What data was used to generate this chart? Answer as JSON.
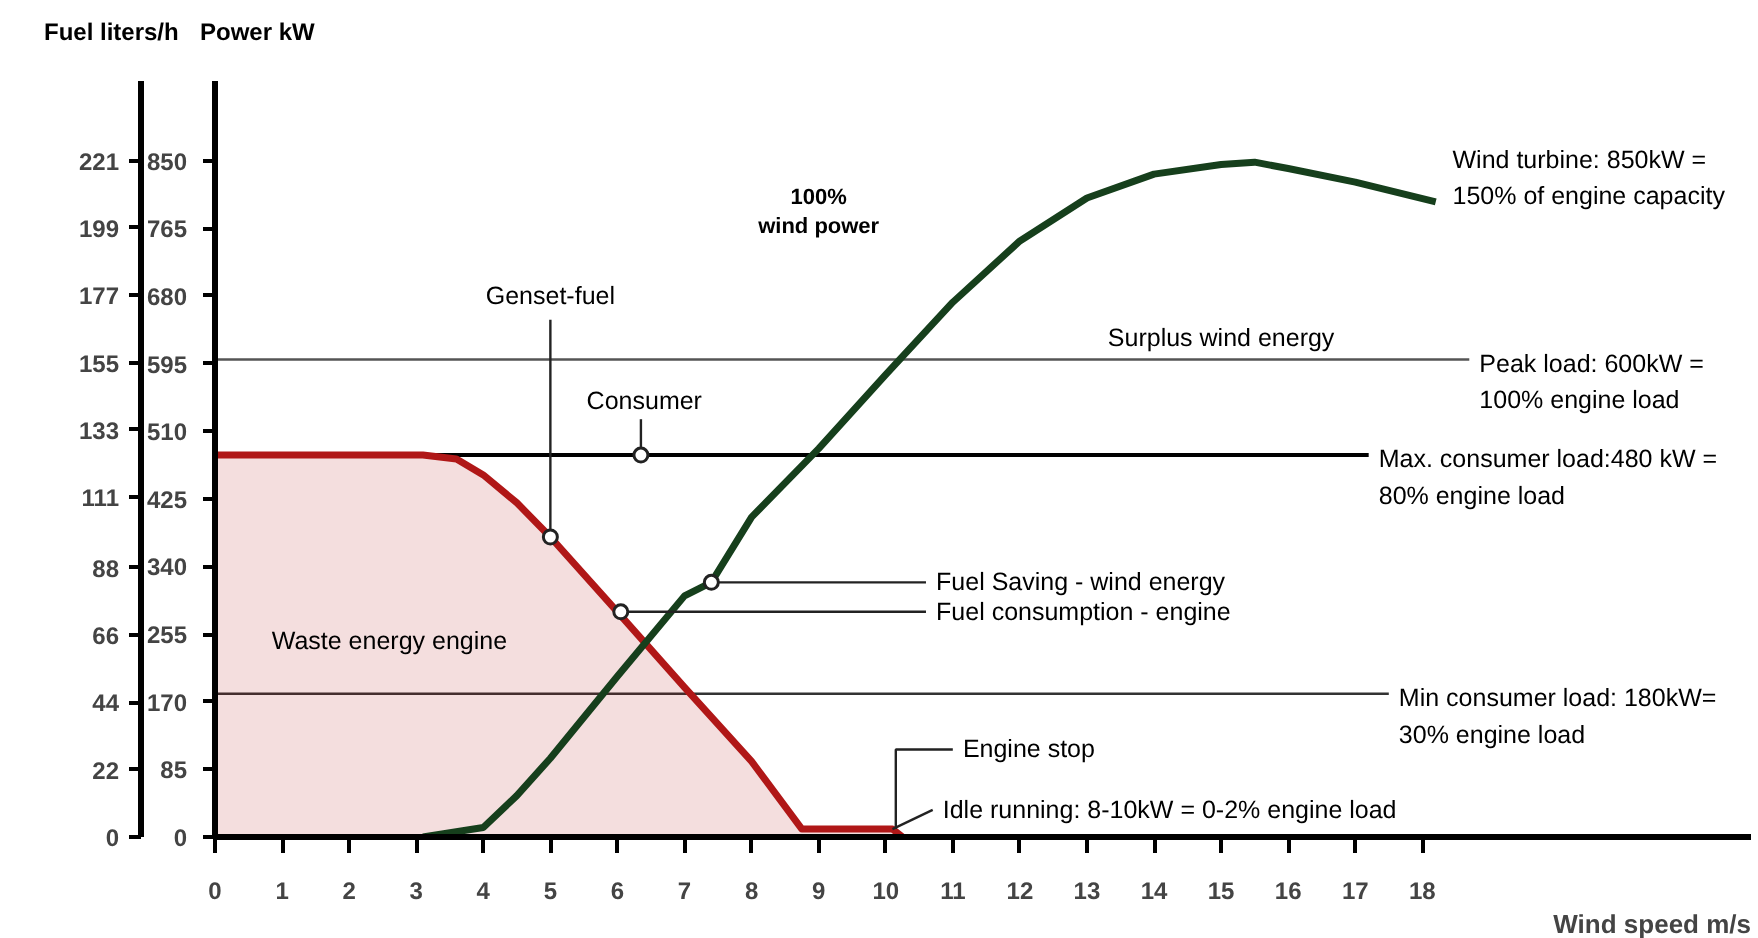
{
  "chart_data": {
    "type": "line",
    "xlabel": "Wind speed m/s",
    "ylabel": "Power kW",
    "y2label": "Fuel liters/h",
    "xlim": [
      0,
      22.9
    ],
    "xticks": [
      0,
      1,
      2,
      3,
      4,
      5,
      6,
      7,
      8,
      9,
      10,
      11,
      12,
      13,
      14,
      15,
      16,
      17,
      18
    ],
    "ylim": [
      0,
      950
    ],
    "yticks": [
      0,
      85,
      170,
      255,
      340,
      425,
      510,
      595,
      680,
      765,
      850
    ],
    "y2lim": [
      0,
      247
    ],
    "y2ticks": [
      0,
      22,
      44,
      66,
      88,
      111,
      133,
      155,
      177,
      199,
      221
    ],
    "grid": false,
    "legend": false,
    "marker": "none",
    "line_style": "solid",
    "series": [
      {
        "type": "area",
        "color": "#b01717",
        "x": [
          0,
          3.1,
          3.6,
          4.0,
          4.5,
          5,
          6,
          7,
          8,
          8.75,
          10.1,
          10.25
        ],
        "values": [
          480,
          480,
          475,
          455,
          420,
          377,
          283,
          188,
          95,
          10,
          10,
          0
        ]
      },
      {
        "name": "Wind turbine: 850kW = 150% of engine capacity",
        "color": "#163f1c",
        "x": [
          3.1,
          4,
          4.5,
          5,
          6,
          7,
          7.4,
          8,
          9,
          10,
          11,
          12,
          13,
          14,
          15,
          15.5,
          16,
          17,
          18.2
        ],
        "values": [
          0,
          12,
          52,
          99,
          202,
          303,
          320,
          402,
          488,
          581,
          672,
          749,
          803,
          833,
          845,
          848,
          840,
          823,
          798
        ]
      }
    ],
    "ref_lines": [
      {
        "axis": "y",
        "value": 600,
        "label": "Peak load: 600kW = 100% engine load",
        "color": "#555555"
      },
      {
        "axis": "y",
        "value": 480,
        "label": "Max. consumer load:480 kW = 80% engine load",
        "color": "#000000"
      },
      {
        "axis": "y",
        "value": 180,
        "label": "Min consumer load: 180kW= 30% engine load",
        "color": "#333333"
      }
    ],
    "annotations": [
      {
        "text": "Genset-fuel",
        "x": 5,
        "y": 377
      },
      {
        "text": "Consumer",
        "x": 6.35,
        "y": 480
      },
      "100% wind power",
      "Surplus wind energy",
      "Waste energy engine",
      {
        "text": "Fuel Saving - wind energy",
        "x": 7.4,
        "y": 320
      },
      {
        "text": "Fuel consumption - engine",
        "x": 6.05,
        "y": 283
      },
      {
        "text": "Engine stop",
        "x": 10.15,
        "y": 10
      },
      {
        "text": "Idle running: 8-10kW = 0-2% engine load",
        "x": 10.1,
        "y": 10
      }
    ]
  }
}
